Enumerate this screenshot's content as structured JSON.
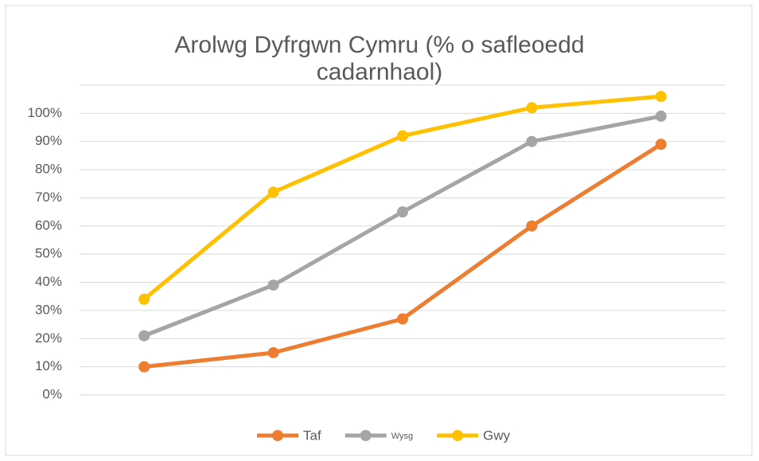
{
  "chart_data": {
    "type": "line",
    "title": "Arolwg Dyfrgwn Cymru (% o safleoedd cadarnhaol)",
    "categories": [
      null,
      null,
      null,
      null,
      null
    ],
    "series": [
      {
        "name": "Taf",
        "color": "#ED7D31",
        "values": [
          10,
          15,
          27,
          60,
          89
        ]
      },
      {
        "name": "Wysg",
        "color": "#A5A5A5",
        "values": [
          21,
          39,
          65,
          90,
          99
        ]
      },
      {
        "name": "Gwy",
        "color": "#FFC000",
        "values": [
          34,
          72,
          92,
          102,
          106
        ]
      }
    ],
    "ylim": [
      0,
      110
    ],
    "yticks": [
      {
        "value": 0,
        "label": "0%"
      },
      {
        "value": 10,
        "label": "10%"
      },
      {
        "value": 20,
        "label": "20%"
      },
      {
        "value": 30,
        "label": "30%"
      },
      {
        "value": 40,
        "label": "40%"
      },
      {
        "value": 50,
        "label": "50%"
      },
      {
        "value": 60,
        "label": "60%"
      },
      {
        "value": 70,
        "label": "70%"
      },
      {
        "value": 80,
        "label": "80%"
      },
      {
        "value": 90,
        "label": "90%"
      },
      {
        "value": 100,
        "label": "100%"
      }
    ],
    "grid": true,
    "legend": "bottom"
  }
}
